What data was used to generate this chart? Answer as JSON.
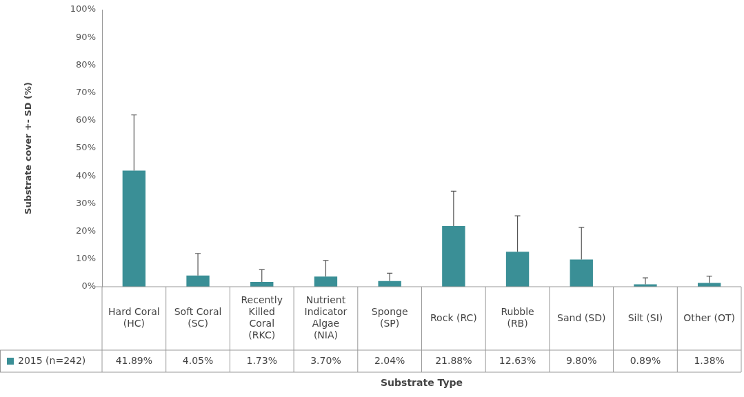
{
  "chart_data": {
    "type": "bar",
    "xlabel": "Substrate Type",
    "ylabel": "Substrate cover +- SD (%)",
    "categories": [
      "Hard Coral (HC)",
      "Soft Coral (SC)",
      "Recently Killed Coral (RKC)",
      "Nutrient Indicator Algae (NIA)",
      "Sponge (SP)",
      "Rock (RC)",
      "Rubble (RB)",
      "Sand (SD)",
      "Silt (SI)",
      "Other (OT)"
    ],
    "series": [
      {
        "name": "2015 (n=242)",
        "color": "#3a8f96",
        "values": [
          41.89,
          4.05,
          1.73,
          3.7,
          2.04,
          21.88,
          12.63,
          9.8,
          0.89,
          1.38
        ],
        "errors": [
          [
            41.89,
            62
          ],
          [
            4.05,
            12
          ],
          [
            1.73,
            6.2
          ],
          [
            3.7,
            9.5
          ],
          [
            2.04,
            4.9
          ],
          [
            21.88,
            34.5
          ],
          [
            12.63,
            25.6
          ],
          [
            9.8,
            21.4
          ],
          [
            0.89,
            3.2
          ],
          [
            1.38,
            3.8
          ]
        ],
        "value_labels": [
          "41.89%",
          "4.05%",
          "1.73%",
          "3.70%",
          "2.04%",
          "21.88%",
          "12.63%",
          "9.80%",
          "0.89%",
          "1.38%"
        ]
      }
    ],
    "ylim": [
      0,
      100
    ],
    "yticks": [
      {
        "value": 0,
        "label": "0%"
      },
      {
        "value": 10,
        "label": "10%"
      },
      {
        "value": 20,
        "label": "20%"
      },
      {
        "value": 30,
        "label": "30%"
      },
      {
        "value": 40,
        "label": "40%"
      },
      {
        "value": 50,
        "label": "50%"
      },
      {
        "value": 60,
        "label": "60%"
      },
      {
        "value": 70,
        "label": "70%"
      },
      {
        "value": 80,
        "label": "80%"
      },
      {
        "value": 90,
        "label": "90%"
      },
      {
        "value": 100,
        "label": "100%"
      }
    ],
    "grid": false
  }
}
